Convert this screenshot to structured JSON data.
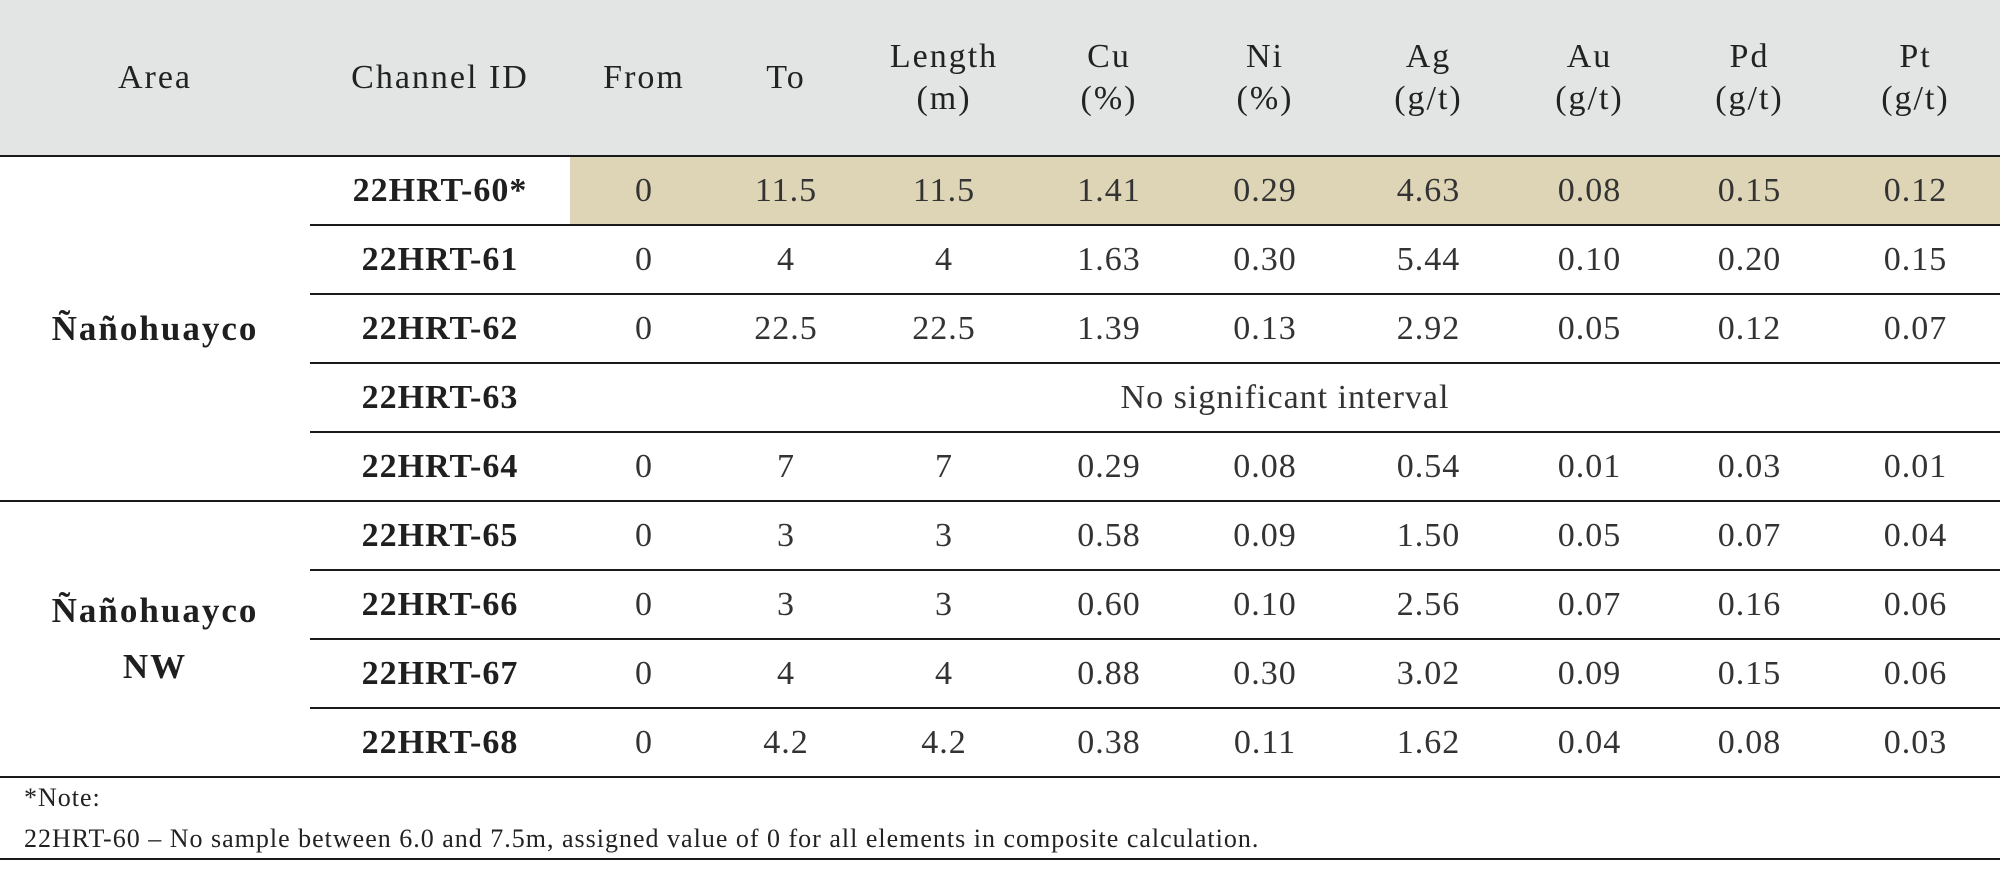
{
  "headers": {
    "area": "Area",
    "channel_id": "Channel ID",
    "from": "From",
    "to": "To",
    "length": [
      "Length",
      "(m)"
    ],
    "cu": [
      "Cu",
      "(%)"
    ],
    "ni": [
      "Ni",
      "(%)"
    ],
    "ag": [
      "Ag",
      "(g/t)"
    ],
    "au": [
      "Au",
      "(g/t)"
    ],
    "pd": [
      "Pd",
      "(g/t)"
    ],
    "pt": [
      "Pt",
      "(g/t)"
    ]
  },
  "areas": [
    {
      "name_lines": [
        "Ñañohuayco"
      ]
    },
    {
      "name_lines": [
        "Ñañohuayco",
        "NW"
      ]
    }
  ],
  "rows": [
    {
      "channel_id": "22HRT-60*",
      "from": "0",
      "to": "11.5",
      "length": "11.5",
      "cu": "1.41",
      "ni": "0.29",
      "ag": "4.63",
      "au": "0.08",
      "pd": "0.15",
      "pt": "0.12"
    },
    {
      "channel_id": "22HRT-61",
      "from": "0",
      "to": "4",
      "length": "4",
      "cu": "1.63",
      "ni": "0.30",
      "ag": "5.44",
      "au": "0.10",
      "pd": "0.20",
      "pt": "0.15"
    },
    {
      "channel_id": "22HRT-62",
      "from": "0",
      "to": "22.5",
      "length": "22.5",
      "cu": "1.39",
      "ni": "0.13",
      "ag": "2.92",
      "au": "0.05",
      "pd": "0.12",
      "pt": "0.07"
    },
    {
      "channel_id": "22HRT-63",
      "no_interval": "No significant interval"
    },
    {
      "channel_id": "22HRT-64",
      "from": "0",
      "to": "7",
      "length": "7",
      "cu": "0.29",
      "ni": "0.08",
      "ag": "0.54",
      "au": "0.01",
      "pd": "0.03",
      "pt": "0.01"
    },
    {
      "channel_id": "22HRT-65",
      "from": "0",
      "to": "3",
      "length": "3",
      "cu": "0.58",
      "ni": "0.09",
      "ag": "1.50",
      "au": "0.05",
      "pd": "0.07",
      "pt": "0.04"
    },
    {
      "channel_id": "22HRT-66",
      "from": "0",
      "to": "3",
      "length": "3",
      "cu": "0.60",
      "ni": "0.10",
      "ag": "2.56",
      "au": "0.07",
      "pd": "0.16",
      "pt": "0.06"
    },
    {
      "channel_id": "22HRT-67",
      "from": "0",
      "to": "4",
      "length": "4",
      "cu": "0.88",
      "ni": "0.30",
      "ag": "3.02",
      "au": "0.09",
      "pd": "0.15",
      "pt": "0.06"
    },
    {
      "channel_id": "22HRT-68",
      "from": "0",
      "to": "4.2",
      "length": "4.2",
      "cu": "0.38",
      "ni": "0.11",
      "ag": "1.62",
      "au": "0.04",
      "pd": "0.08",
      "pt": "0.03"
    }
  ],
  "note": {
    "heading": "*Note:",
    "text": "22HRT-60 – No sample between 6.0 and 7.5m, assigned value of 0 for all elements in composite calculation."
  },
  "colors": {
    "header_bg": "#e2e5e4",
    "highlight_bg": "#ded5b7",
    "rule": "#1a1a1a"
  }
}
